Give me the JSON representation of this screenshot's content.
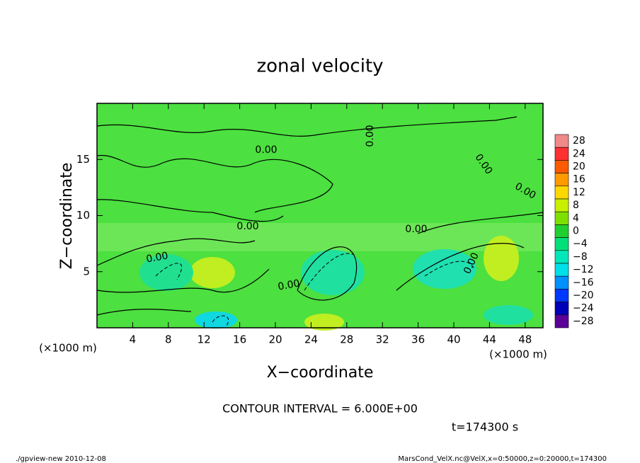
{
  "chart_data": {
    "type": "contour",
    "title": "zonal velocity",
    "x_label": "X−coordinate",
    "y_label": "Z−coordinate",
    "x_unit_left": "(×1000 m)",
    "x_unit_right": "(×1000 m)",
    "xlim": [
      0,
      50
    ],
    "ylim": [
      0,
      20
    ],
    "xticks": [
      4,
      8,
      12,
      16,
      20,
      24,
      28,
      32,
      36,
      40,
      44,
      48
    ],
    "yticks": [
      5,
      10,
      15
    ],
    "contour_labels": [
      "0.00",
      "0.00",
      "0.00",
      "0.00",
      "0.00",
      "0.00",
      "0.00",
      "0.00",
      "0.00"
    ],
    "colorbar": {
      "levels": [
        28,
        24,
        20,
        16,
        12,
        8,
        4,
        0,
        -4,
        -8,
        -12,
        -16,
        -20,
        -24,
        -28
      ],
      "level_labels": [
        "28",
        "24",
        "20",
        "16",
        "12",
        "8",
        "4",
        "0",
        "−4",
        "−8",
        "−12",
        "−16",
        "−20",
        "−24",
        "−28"
      ],
      "colors": [
        "#f08a8a",
        "#ff3030",
        "#ff5a00",
        "#ff9a00",
        "#ffd800",
        "#c8f000",
        "#7ee000",
        "#20d030",
        "#00e078",
        "#00e8b8",
        "#00e0e8",
        "#0090ff",
        "#0038ff",
        "#0000b8",
        "#5a0098"
      ]
    },
    "contour_interval": "CONTOUR INTERVAL = 6.000E+00",
    "time": "t=174300 s",
    "footer_left": "./gpview-new   2010-12-08",
    "footer_right": "MarsCond_VelX.nc@VelX,x=0:50000,z=0:20000,t=174300"
  }
}
